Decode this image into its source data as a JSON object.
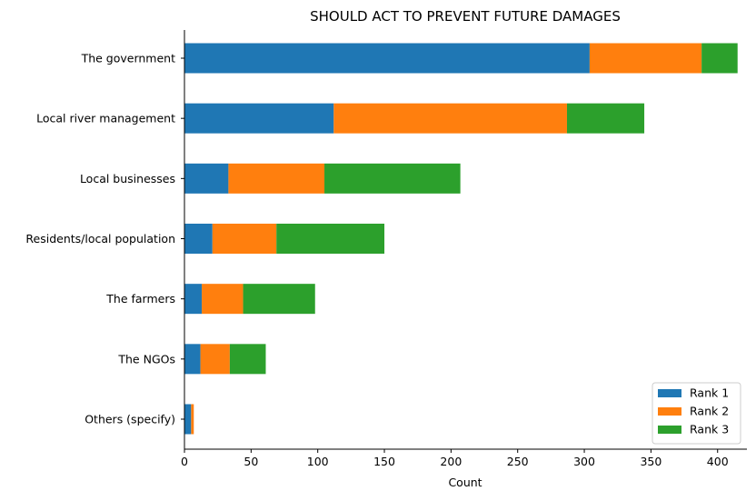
{
  "chart_data": {
    "type": "bar",
    "orientation": "horizontal",
    "stacked": true,
    "title": "SHOULD ACT TO PREVENT FUTURE DAMAGES",
    "xlabel": "Count",
    "ylabel": "",
    "xlim": [
      0,
      422
    ],
    "xticks": [
      0,
      50,
      100,
      150,
      200,
      250,
      300,
      350,
      400
    ],
    "categories": [
      "The government",
      "Local river management",
      "Local businesses",
      "Residents/local population",
      "The farmers",
      "The NGOs",
      "Others (specify)"
    ],
    "series": [
      {
        "name": "Rank 1",
        "color": "#1f77b4",
        "values": [
          304,
          112,
          33,
          21,
          13,
          12,
          5
        ]
      },
      {
        "name": "Rank 2",
        "color": "#ff7f0e",
        "values": [
          84,
          175,
          72,
          48,
          31,
          22,
          2
        ]
      },
      {
        "name": "Rank 3",
        "color": "#2ca02c",
        "values": [
          27,
          58,
          102,
          81,
          54,
          27,
          0
        ]
      }
    ],
    "grid": false,
    "legend_position": "bottom-right"
  }
}
